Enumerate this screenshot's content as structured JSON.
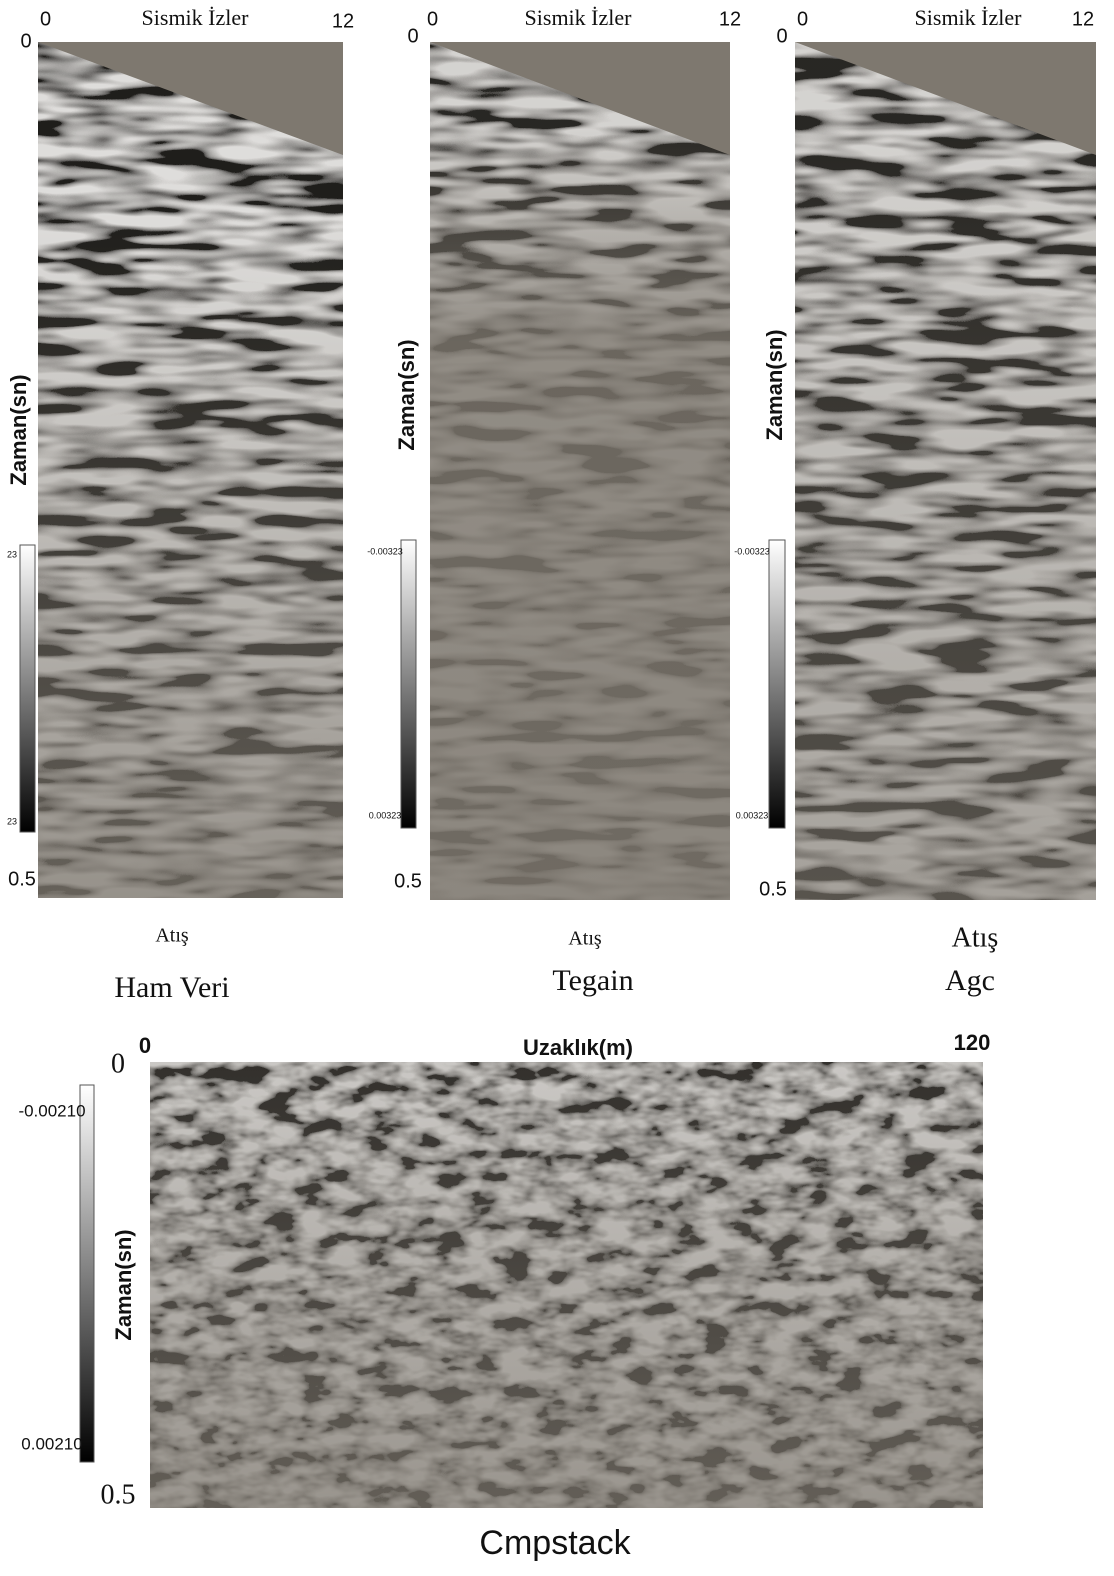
{
  "panels": [
    {
      "top_left": "0",
      "top_label": "Sismik İzler",
      "top_right": "12",
      "y_top": "0",
      "y_bottom": "0.5",
      "y_label": "Zaman(sn)",
      "colorbar_top": "23",
      "colorbar_bottom": "23",
      "x_label": "Atış",
      "title": "Ham Veri"
    },
    {
      "top_left": "0",
      "top_label": "Sismik İzler",
      "top_right": "12",
      "y_top": "0",
      "y_bottom": "0.5",
      "y_label": "Zaman(sn)",
      "colorbar_top": "-0.00323",
      "colorbar_bottom": "0.00323",
      "x_label": "Atış",
      "title": "Tegain"
    },
    {
      "top_left": "0",
      "top_label": "Sismik İzler",
      "top_right": "12",
      "y_top": "0",
      "y_bottom": "0.5",
      "y_label": "Zaman(sn)",
      "colorbar_top": "-0.00323",
      "colorbar_bottom": "0.00323",
      "x_label": "Atış",
      "title": "Agc"
    }
  ],
  "stack": {
    "top_left": "0",
    "top_label": "Uzaklık(m)",
    "top_right": "120",
    "y_top": "0",
    "y_bottom": "0.5",
    "y_label": "Zaman(sn)",
    "colorbar_top": "-0.00210",
    "colorbar_bottom": "0.00210",
    "title": "Cmpstack"
  }
}
